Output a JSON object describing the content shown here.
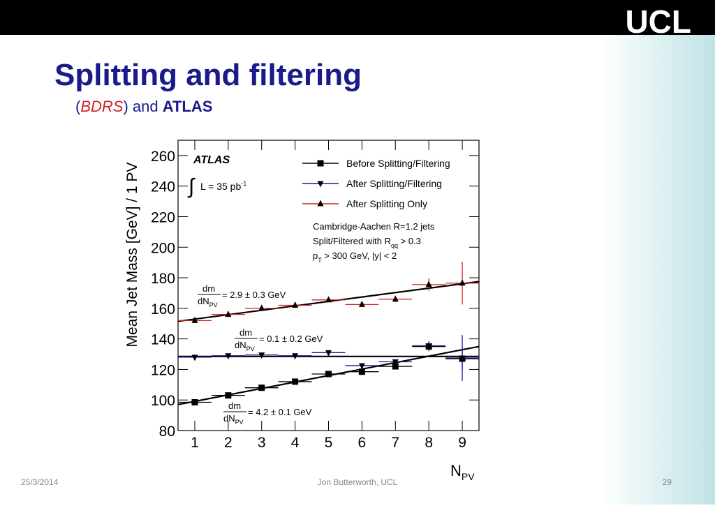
{
  "header": {
    "logo": "UCL"
  },
  "title": "Splitting and filtering",
  "subtitle": {
    "open": "(",
    "emph": "BDRS",
    "mid": ") and ",
    "bold": "ATLAS"
  },
  "footer": {
    "date": "25/3/2014",
    "author": "Jon Butterworth, UCL",
    "page": "29"
  },
  "chart_data": {
    "type": "errorbar",
    "y_label": "Mean Jet Mass [GeV] / 1 PV",
    "x_label": {
      "main": "N",
      "sub": "PV"
    },
    "xlim": [
      0.5,
      9.5
    ],
    "xticks": [
      1,
      2,
      3,
      4,
      5,
      6,
      7,
      8,
      9
    ],
    "ylim": [
      80,
      270
    ],
    "yticks": [
      80,
      100,
      120,
      140,
      160,
      180,
      200,
      220,
      240,
      260
    ],
    "x": [
      1,
      2,
      3,
      4,
      5,
      6,
      7,
      8,
      9
    ],
    "series": [
      {
        "name": "Before Splitting/Filtering",
        "color": "#000000",
        "marker": "square",
        "values": [
          98.5,
          103,
          108,
          112,
          117,
          118.5,
          122,
          135,
          127
        ],
        "errors": [
          1,
          1,
          1,
          1,
          1,
          1,
          1.5,
          3,
          7
        ]
      },
      {
        "name": "After Splitting/Filtering",
        "color": "#1a1aa8",
        "marker": "triangle-down",
        "values": [
          128,
          129,
          129.5,
          129,
          131,
          122.5,
          125,
          135.5,
          127.5
        ],
        "errors": [
          1,
          1,
          1,
          1,
          1,
          1,
          1.5,
          3,
          15
        ]
      },
      {
        "name": "After Splitting Only",
        "color": "#d42020",
        "marker": "triangle-up",
        "values": [
          152,
          156,
          160,
          162,
          165.5,
          162.5,
          166,
          175.5,
          176.5
        ],
        "errors": [
          1,
          1,
          1,
          1,
          1,
          1,
          2,
          4,
          14
        ]
      }
    ],
    "fits": [
      {
        "x": [
          0.5,
          9.5
        ],
        "y": [
          151.5,
          177.5
        ],
        "color": "#000000"
      },
      {
        "x": [
          0.5,
          9.5
        ],
        "y": [
          128.5,
          128.5
        ],
        "color": "#000000"
      },
      {
        "x": [
          0.5,
          9.5
        ],
        "y": [
          97,
          135
        ],
        "color": "#000000"
      }
    ],
    "annotations": [
      {
        "num": "dm",
        "den": "dN",
        "sub": "PV",
        "text": "= 2.9 ± 0.3 GeV"
      },
      {
        "num": "dm",
        "den": "dN",
        "sub": "PV",
        "text": "= 0.1 ± 0.2 GeV"
      },
      {
        "num": "dm",
        "den": "dN",
        "sub": "PV",
        "text": "= 4.2 ± 0.1 GeV"
      }
    ],
    "experiment": "ATLAS",
    "lumi": {
      "integral": "∫",
      "text": "L = 35 pb",
      "sup": "-1"
    },
    "notes": {
      "line1": "Cambridge-Aachen R=1.2 jets",
      "line2": {
        "text": "Split/Filtered with R",
        "sub": "qq",
        "tail": " > 0.3"
      },
      "line3": {
        "p": "p",
        "sub": "T",
        "tail": " > 300 GeV, |y| < 2"
      }
    }
  }
}
